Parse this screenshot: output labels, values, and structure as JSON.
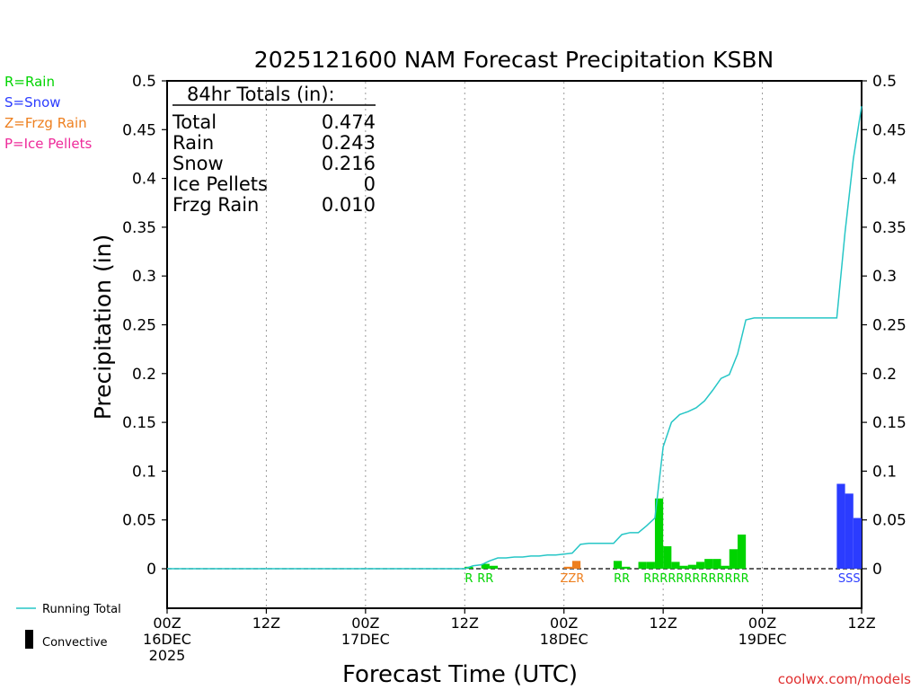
{
  "chart_data": {
    "type": "bar",
    "title": "2025121600 NAM Forecast Precipitation KSBN",
    "ylabel": "Precipitation (in)",
    "xlabel": "Forecast Time (UTC)",
    "ylim": [
      -0.04,
      0.5
    ],
    "y_ticks": [
      "0.5",
      "0.45",
      "0.4",
      "0.35",
      "0.3",
      "0.25",
      "0.2",
      "0.15",
      "0.1",
      "0.05",
      "0"
    ],
    "x_ticks": [
      {
        "hour": 0,
        "lines": [
          "00Z",
          "16DEC",
          "2025"
        ]
      },
      {
        "hour": 12,
        "lines": [
          "12Z"
        ]
      },
      {
        "hour": 24,
        "lines": [
          "00Z",
          "17DEC"
        ]
      },
      {
        "hour": 36,
        "lines": [
          "12Z"
        ]
      },
      {
        "hour": 48,
        "lines": [
          "00Z",
          "18DEC"
        ]
      },
      {
        "hour": 60,
        "lines": [
          "12Z"
        ]
      },
      {
        "hour": 72,
        "lines": [
          "00Z",
          "19DEC"
        ]
      },
      {
        "hour": 84,
        "lines": [
          "12Z"
        ]
      }
    ],
    "grid_hours": [
      12,
      24,
      36,
      48,
      60,
      72
    ],
    "grid_style": "vertical dotted",
    "legend_types": [
      {
        "label": "R=Rain",
        "color": "#00d400"
      },
      {
        "label": "S=Snow",
        "color": "#2b3cff"
      },
      {
        "label": "Z=Frzg Rain",
        "color": "#ee7f1e"
      },
      {
        "label": "P=Ice Pellets",
        "color": "#ee2a9a"
      }
    ],
    "legend_bottom": [
      {
        "label": "Running Total",
        "color": "#26c6c6",
        "symbol": "line"
      },
      {
        "label": "Convective",
        "color": "#000000",
        "symbol": "bar"
      }
    ],
    "totals": {
      "heading": "84hr Totals (in):",
      "rows": [
        {
          "label": "Total",
          "value": "0.474"
        },
        {
          "label": "Rain",
          "value": "0.243"
        },
        {
          "label": "Snow",
          "value": "0.216"
        },
        {
          "label": "Ice Pellets",
          "value": "0"
        },
        {
          "label": "Frzg Rain",
          "value": "0.010"
        }
      ]
    },
    "bars": [
      {
        "hour": 37,
        "value": 0.002,
        "ptype": "R"
      },
      {
        "hour": 39,
        "value": 0.005,
        "ptype": "R"
      },
      {
        "hour": 40,
        "value": 0.003,
        "ptype": "R"
      },
      {
        "hour": 50,
        "value": 0.008,
        "ptype": "Z"
      },
      {
        "hour": 49,
        "value": 0.002,
        "ptype": "Z"
      },
      {
        "hour": 55,
        "value": 0.008,
        "ptype": "R"
      },
      {
        "hour": 56,
        "value": 0.002,
        "ptype": "R"
      },
      {
        "hour": 58,
        "value": 0.007,
        "ptype": "R"
      },
      {
        "hour": 59,
        "value": 0.007,
        "ptype": "R"
      },
      {
        "hour": 60,
        "value": 0.072,
        "ptype": "R"
      },
      {
        "hour": 61,
        "value": 0.023,
        "ptype": "R"
      },
      {
        "hour": 62,
        "value": 0.007,
        "ptype": "R"
      },
      {
        "hour": 63,
        "value": 0.003,
        "ptype": "R"
      },
      {
        "hour": 64,
        "value": 0.004,
        "ptype": "R"
      },
      {
        "hour": 65,
        "value": 0.007,
        "ptype": "R"
      },
      {
        "hour": 66,
        "value": 0.01,
        "ptype": "R"
      },
      {
        "hour": 67,
        "value": 0.01,
        "ptype": "R"
      },
      {
        "hour": 68,
        "value": 0.003,
        "ptype": "R"
      },
      {
        "hour": 69,
        "value": 0.02,
        "ptype": "R"
      },
      {
        "hour": 70,
        "value": 0.035,
        "ptype": "R"
      },
      {
        "hour": 82,
        "value": 0.087,
        "ptype": "S"
      },
      {
        "hour": 83,
        "value": 0.077,
        "ptype": "S"
      },
      {
        "hour": 84,
        "value": 0.052,
        "ptype": "S"
      }
    ],
    "ptype_labels": [
      {
        "hour": 37,
        "text": "R",
        "ptype": "R"
      },
      {
        "hour": 39,
        "text": "RR",
        "ptype": "R"
      },
      {
        "hour": 49.5,
        "text": "ZZR",
        "ptype": "Z"
      },
      {
        "hour": 55.5,
        "text": "RR",
        "ptype": "R"
      },
      {
        "hour": 64.5,
        "text": "RRRRRRRRRRRRR",
        "ptype": "R"
      },
      {
        "hour": 83,
        "text": "SSS",
        "ptype": "S"
      }
    ],
    "running_total": {
      "hours": [
        0,
        36,
        37,
        38,
        39,
        40,
        41,
        42,
        43,
        44,
        45,
        46,
        47,
        48,
        49,
        50,
        51,
        52,
        53,
        54,
        55,
        56,
        57,
        58,
        59,
        60,
        61,
        62,
        63,
        64,
        65,
        66,
        67,
        68,
        69,
        70,
        71,
        72,
        80,
        81,
        82,
        83,
        84
      ],
      "values": [
        0,
        0,
        0.003,
        0.004,
        0.008,
        0.011,
        0.011,
        0.012,
        0.012,
        0.013,
        0.013,
        0.014,
        0.014,
        0.015,
        0.016,
        0.025,
        0.026,
        0.026,
        0.026,
        0.026,
        0.035,
        0.037,
        0.037,
        0.044,
        0.052,
        0.125,
        0.15,
        0.158,
        0.161,
        0.165,
        0.172,
        0.183,
        0.195,
        0.199,
        0.22,
        0.255,
        0.257,
        0.257,
        0.257,
        0.257,
        0.345,
        0.42,
        0.474
      ]
    },
    "series_colors": {
      "R": "#00d400",
      "S": "#2b3cff",
      "Z": "#ee7f1e",
      "P": "#ee2a9a"
    },
    "running_total_color": "#26c6c6",
    "credit": "coolwx.com/models"
  }
}
